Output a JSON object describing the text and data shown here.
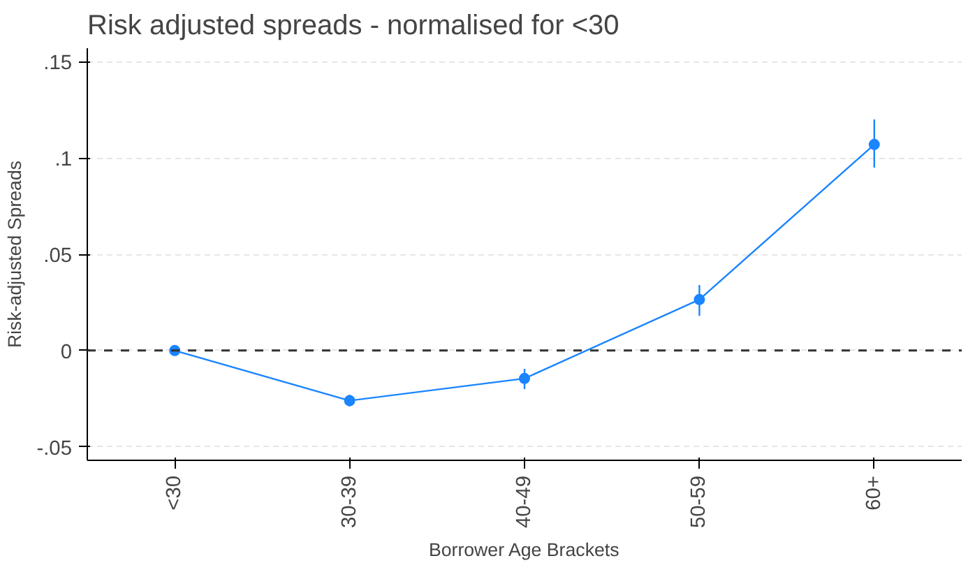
{
  "chart_data": {
    "type": "line",
    "title": "Risk adjusted spreads - normalised for <30",
    "xlabel": "Borrower Age Brackets",
    "ylabel": "Risk-adjusted Spreads",
    "categories": [
      "<30",
      "30-39",
      "40-49",
      "50-59",
      "60+"
    ],
    "series": [
      {
        "color": "#1a85ff",
        "values": [
          0,
          -0.026,
          -0.0145,
          0.0265,
          0.107
        ],
        "errors": [
          null,
          [
            -0.029,
            -0.023
          ],
          [
            -0.02,
            -0.0095
          ],
          [
            0.018,
            0.034
          ],
          [
            0.095,
            0.12
          ]
        ]
      }
    ],
    "marker": "circle",
    "line_style": "solid",
    "ylim": [
      -0.057,
      0.157
    ],
    "yticks": [
      {
        "value": -0.05,
        "label": "-.05"
      },
      0,
      {
        "value": 0.05,
        "label": ".05"
      },
      {
        "value": 0.1,
        "label": ".1"
      },
      {
        "value": 0.15,
        "label": ".15"
      }
    ],
    "grid": "y",
    "ref_lines": [
      {
        "axis": "y",
        "value": 0,
        "color": "#333333",
        "line_style": "dashed"
      }
    ]
  }
}
